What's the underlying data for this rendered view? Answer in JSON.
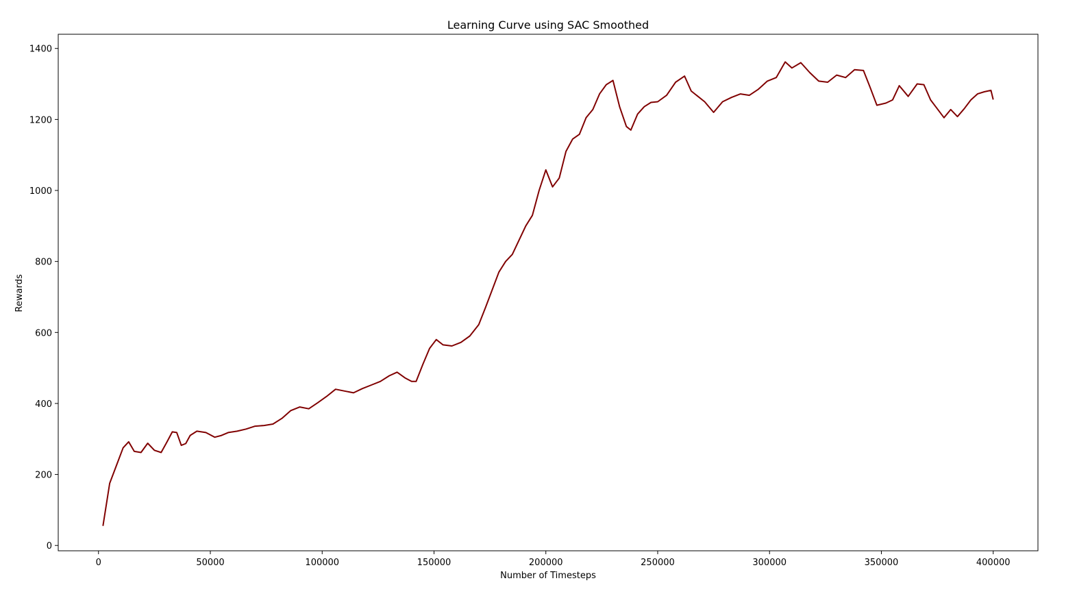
{
  "chart_data": {
    "type": "line",
    "title": "Learning Curve using SAC Smoothed",
    "xlabel": "Number of Timesteps",
    "ylabel": "Rewards",
    "xlim": [
      -18000,
      420000
    ],
    "ylim": [
      -15,
      1440
    ],
    "xticks": [
      0,
      50000,
      100000,
      150000,
      200000,
      250000,
      300000,
      350000,
      400000
    ],
    "yticks": [
      0,
      200,
      400,
      600,
      800,
      1000,
      1200,
      1400
    ],
    "grid": false,
    "legend": "none",
    "series": [
      {
        "color": "#800000",
        "x": [
          2000,
          5000,
          8000,
          11000,
          13500,
          16000,
          19000,
          22000,
          25000,
          28000,
          30500,
          33000,
          35000,
          37000,
          39000,
          41000,
          44000,
          48000,
          52000,
          55000,
          58000,
          62000,
          66000,
          70000,
          74000,
          78000,
          82000,
          86000,
          90000,
          94000,
          98000,
          102000,
          106000,
          110000,
          114000,
          118000,
          122000,
          126000,
          130000,
          133500,
          137000,
          140000,
          142000,
          145000,
          148000,
          151000,
          154000,
          158000,
          162000,
          166000,
          170000,
          173000,
          176000,
          179000,
          182000,
          185000,
          188000,
          191000,
          194000,
          197000,
          200000,
          203000,
          206000,
          209000,
          212000,
          215000,
          218000,
          221000,
          224000,
          227000,
          230000,
          233000,
          236000,
          238000,
          241000,
          244000,
          247000,
          250000,
          254000,
          258000,
          262000,
          265000,
          268000,
          271000,
          275000,
          279000,
          283000,
          287000,
          291000,
          295000,
          299000,
          303000,
          307000,
          310000,
          314000,
          318000,
          322000,
          326000,
          330000,
          334000,
          338000,
          342000,
          345000,
          348000,
          352000,
          355000,
          358000,
          362000,
          366000,
          369000,
          372000,
          375000,
          378000,
          381000,
          384000,
          387000,
          390000,
          393000,
          396000,
          399000,
          400000
        ],
        "y": [
          55,
          175,
          225,
          275,
          292,
          265,
          262,
          288,
          268,
          262,
          290,
          320,
          318,
          282,
          287,
          310,
          322,
          318,
          305,
          310,
          318,
          322,
          328,
          336,
          338,
          342,
          358,
          380,
          390,
          385,
          402,
          420,
          440,
          435,
          430,
          442,
          452,
          462,
          478,
          488,
          472,
          462,
          462,
          510,
          555,
          580,
          565,
          562,
          572,
          590,
          622,
          670,
          720,
          770,
          800,
          820,
          860,
          900,
          930,
          1000,
          1058,
          1010,
          1035,
          1110,
          1145,
          1158,
          1205,
          1228,
          1272,
          1298,
          1310,
          1235,
          1180,
          1170,
          1215,
          1236,
          1248,
          1250,
          1268,
          1305,
          1322,
          1280,
          1265,
          1250,
          1220,
          1250,
          1262,
          1272,
          1268,
          1285,
          1308,
          1318,
          1362,
          1345,
          1360,
          1332,
          1308,
          1305,
          1325,
          1318,
          1340,
          1338,
          1290,
          1240,
          1246,
          1255,
          1295,
          1265,
          1300,
          1298,
          1255,
          1230,
          1205,
          1228,
          1208,
          1230,
          1255,
          1272,
          1278,
          1282,
          1256
        ]
      }
    ]
  }
}
